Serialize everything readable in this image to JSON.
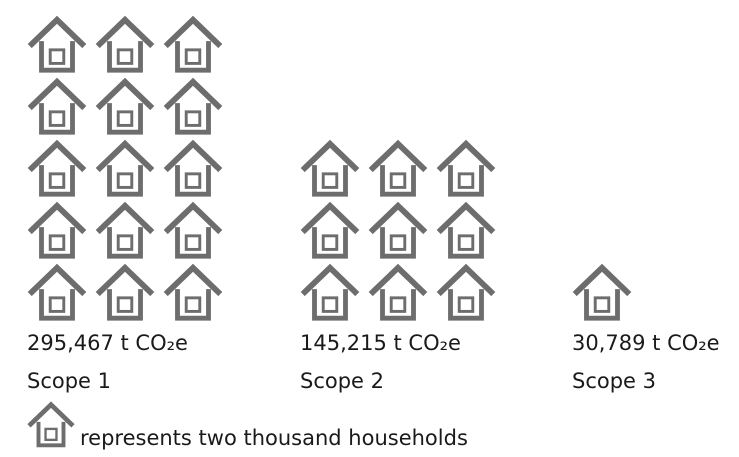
{
  "chart_data": {
    "type": "pictogram",
    "unit_households": 2000,
    "categories": [
      "Scope 1",
      "Scope 2",
      "Scope 3"
    ],
    "series": [
      {
        "values": [
          295467,
          145215,
          30789
        ],
        "value_labels": [
          "295,467 t CO₂e",
          "145,215 t CO₂e",
          "30,789 t CO₂e"
        ],
        "icon_counts": [
          15,
          9,
          1
        ]
      }
    ],
    "legend": {
      "text": "represents two thousand households",
      "placement": "bottom-left"
    }
  },
  "colors": {
    "icon": "#6d6d6d",
    "text": "#1a1a1a",
    "background": "#ffffff"
  },
  "icon": "house-icon"
}
